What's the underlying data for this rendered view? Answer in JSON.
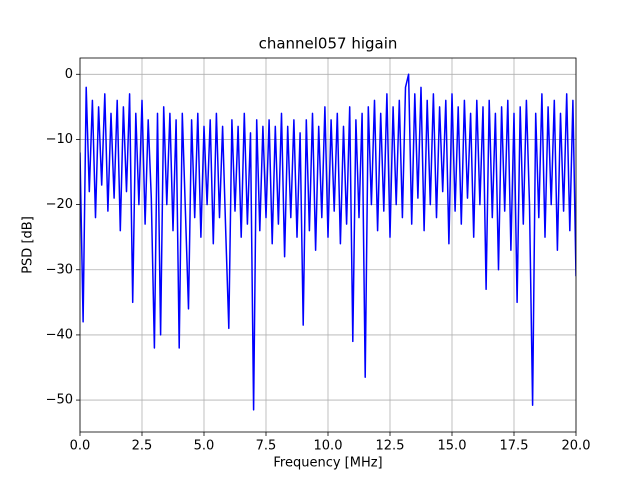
{
  "chart_data": {
    "type": "line",
    "title": "channel057 higain",
    "xlabel": "Frequency [MHz]",
    "ylabel": "PSD [dB]",
    "color": "#0000ff",
    "grid": true,
    "xlim": [
      0,
      20
    ],
    "ylim": [
      -54.9,
      2.5
    ],
    "xticks": [
      {
        "value": 0,
        "label": "0.0"
      },
      2.5,
      {
        "value": 5,
        "label": "5.0"
      },
      7.5,
      {
        "value": 10,
        "label": "10.0"
      },
      12.5,
      {
        "value": 15,
        "label": "15.0"
      },
      17.5,
      {
        "value": 20,
        "label": "20.0"
      }
    ],
    "yticks": [
      {
        "value": -50,
        "label": "−50"
      },
      {
        "value": -40,
        "label": "−40"
      },
      {
        "value": -30,
        "label": "−30"
      },
      {
        "value": -20,
        "label": "−20"
      },
      {
        "value": -10,
        "label": "−10"
      },
      0
    ],
    "x": [
      0,
      0.125,
      0.25,
      0.375,
      0.5,
      0.625,
      0.75,
      0.875,
      1,
      1.125,
      1.25,
      1.375,
      1.5,
      1.625,
      1.75,
      1.875,
      2,
      2.125,
      2.25,
      2.375,
      2.5,
      2.625,
      2.75,
      2.875,
      3,
      3.125,
      3.25,
      3.375,
      3.5,
      3.625,
      3.75,
      3.875,
      4,
      4.125,
      4.25,
      4.375,
      4.5,
      4.625,
      4.75,
      4.875,
      5,
      5.125,
      5.25,
      5.375,
      5.5,
      5.625,
      5.75,
      5.875,
      6,
      6.125,
      6.25,
      6.375,
      6.5,
      6.625,
      6.75,
      6.875,
      7,
      7.125,
      7.25,
      7.375,
      7.5,
      7.625,
      7.75,
      7.875,
      8,
      8.125,
      8.25,
      8.375,
      8.5,
      8.625,
      8.75,
      8.875,
      9,
      9.125,
      9.25,
      9.375,
      9.5,
      9.625,
      9.75,
      9.875,
      10,
      10.125,
      10.25,
      10.375,
      10.5,
      10.625,
      10.75,
      10.875,
      11,
      11.125,
      11.25,
      11.375,
      11.5,
      11.625,
      11.75,
      11.875,
      12,
      12.125,
      12.25,
      12.375,
      12.5,
      12.625,
      12.75,
      12.875,
      13,
      13.125,
      13.25,
      13.375,
      13.5,
      13.625,
      13.75,
      13.875,
      14,
      14.125,
      14.25,
      14.375,
      14.5,
      14.625,
      14.75,
      14.875,
      15,
      15.125,
      15.25,
      15.375,
      15.5,
      15.625,
      15.75,
      15.875,
      16,
      16.125,
      16.25,
      16.375,
      16.5,
      16.625,
      16.75,
      16.875,
      17,
      17.125,
      17.25,
      17.375,
      17.5,
      17.625,
      17.75,
      17.875,
      18,
      18.125,
      18.25,
      18.375,
      18.5,
      18.625,
      18.75,
      18.875,
      19,
      19.125,
      19.25,
      19.375,
      19.5,
      19.625,
      19.75,
      19.875,
      20
    ],
    "values": [
      -12,
      -38,
      -2,
      -18,
      -4,
      -22,
      -5,
      -17,
      -3,
      -21,
      -6,
      -19,
      -4,
      -24,
      -5,
      -18,
      -3,
      -35,
      -6,
      -20,
      -4,
      -23,
      -7,
      -19,
      -42,
      -6,
      -40,
      -5,
      -20,
      -6,
      -24,
      -7,
      -42,
      -6,
      -21,
      -36,
      -7,
      -22,
      -6,
      -25,
      -8,
      -20,
      -7,
      -26,
      -6,
      -22,
      -8,
      -24,
      -39,
      -7,
      -21,
      -8,
      -25,
      -6,
      -23,
      -9,
      -51.5,
      -7,
      -24,
      -8,
      -22,
      -7,
      -26,
      -8,
      -23,
      -6,
      -28,
      -8,
      -22,
      -7,
      -25,
      -9,
      -38.5,
      -7,
      -24,
      -6,
      -27,
      -8,
      -22,
      -5,
      -25,
      -7,
      -21,
      -6,
      -26,
      -8,
      -23,
      -5,
      -41,
      -7,
      -22,
      -6,
      -46.5,
      -5,
      -20,
      -4,
      -24,
      -6,
      -21,
      -3,
      -25,
      -5,
      -20,
      -4,
      -22,
      -2,
      0,
      -23,
      -3,
      -19,
      -2,
      -24,
      -4,
      -20,
      -3,
      -22,
      -5,
      -18,
      -4,
      -26,
      -3,
      -21,
      -5,
      -23,
      -4,
      -19,
      -6,
      -25,
      -4,
      -20,
      -5,
      -33,
      -4,
      -22,
      -6,
      -30,
      -5,
      -21,
      -4,
      -27,
      -6,
      -35,
      -5,
      -23,
      -4,
      -20,
      -50.8,
      -6,
      -22,
      -3,
      -25,
      -5,
      -20,
      -4,
      -27,
      -6,
      -21,
      -3,
      -24,
      -4,
      -31
    ]
  }
}
